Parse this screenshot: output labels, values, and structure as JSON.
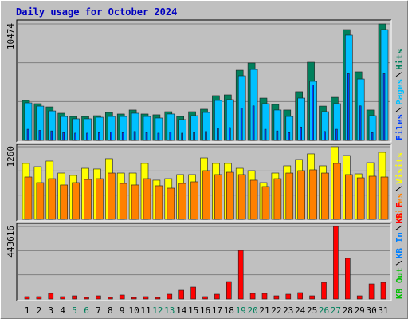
{
  "chart_data": [
    {
      "type": "bar",
      "title": "Daily usage for October 2024",
      "ylim": [
        0,
        10474
      ],
      "yticks": [
        10474
      ],
      "grid_divisions": 3,
      "series": [
        {
          "name": "Hits",
          "color": "#00805c",
          "values": [
            3590,
            3300,
            3010,
            2440,
            2150,
            2150,
            2220,
            2510,
            2370,
            2730,
            2370,
            2300,
            2580,
            2150,
            2580,
            2800,
            4020,
            4090,
            6310,
            6960,
            3800,
            3230,
            2730,
            4380,
            7030,
            3080,
            3870,
            9970,
            6170,
            2730,
            10474
          ]
        },
        {
          "name": "Pages",
          "color": "#00c0ff",
          "values": [
            3370,
            3080,
            2650,
            2150,
            1940,
            1940,
            2080,
            2150,
            2150,
            2440,
            2150,
            2010,
            2370,
            1870,
            2220,
            2510,
            3590,
            3660,
            5810,
            6380,
            3300,
            2730,
            2150,
            3800,
            5310,
            2580,
            3300,
            9470,
            5520,
            2220,
            9970
          ]
        },
        {
          "name": "Files",
          "color": "#0040ff",
          "values": [
            1000,
            900,
            850,
            700,
            650,
            650,
            700,
            750,
            700,
            800,
            700,
            650,
            750,
            650,
            700,
            800,
            1100,
            1150,
            2900,
            3100,
            1000,
            850,
            700,
            1200,
            5000,
            800,
            1000,
            6000,
            3100,
            700,
            6000
          ]
        }
      ]
    },
    {
      "type": "bar",
      "ylim": [
        0,
        1260
      ],
      "yticks": [
        1260
      ],
      "grid_divisions": 3,
      "series": [
        {
          "name": "Visits",
          "color": "#ffff00",
          "values": [
            970,
            914,
            1011,
            803,
            762,
            886,
            873,
            1053,
            803,
            803,
            970,
            679,
            706,
            776,
            776,
            1066,
            970,
            970,
            886,
            845,
            637,
            803,
            928,
            1039,
            1136,
            928,
            1260,
            1108,
            789,
            983,
            1163
          ]
        },
        {
          "name": "Sites",
          "color": "#ff8000",
          "values": [
            734,
            637,
            706,
            596,
            637,
            692,
            706,
            803,
            623,
            596,
            706,
            582,
            540,
            623,
            651,
            845,
            776,
            817,
            776,
            679,
            568,
            706,
            803,
            845,
            859,
            803,
            970,
            776,
            720,
            748,
            734
          ]
        }
      ]
    },
    {
      "type": "bar",
      "ylim": [
        0,
        443616
      ],
      "yticks": [
        443616
      ],
      "grid_divisions": 3,
      "series": [
        {
          "name": "KB F",
          "color": "#ff0000",
          "values": [
            14600,
            14600,
            34100,
            14600,
            19500,
            9750,
            19500,
            9750,
            24400,
            9750,
            14600,
            9750,
            29300,
            53600,
            73100,
            14600,
            29300,
            107000,
            297000,
            34100,
            34100,
            19500,
            29300,
            39000,
            19500,
            102000,
            443616,
            249000,
            19500,
            92600,
            102000
          ]
        }
      ],
      "legend_extra": [
        {
          "name": "KB In",
          "color": "#0080ff"
        },
        {
          "name": "KB Out",
          "color": "#00c000"
        }
      ],
      "categories": [
        "1",
        "2",
        "3",
        "4",
        "5",
        "6",
        "7",
        "8",
        "9",
        "10",
        "11",
        "12",
        "13",
        "14",
        "15",
        "16",
        "17",
        "18",
        "19",
        "20",
        "21",
        "22",
        "23",
        "24",
        "25",
        "26",
        "27",
        "28",
        "29",
        "30",
        "31"
      ],
      "weekends": [
        5,
        6,
        12,
        13,
        19,
        20,
        26,
        27
      ],
      "weekday_color": "#000000",
      "weekend_color": "#00805c"
    }
  ]
}
